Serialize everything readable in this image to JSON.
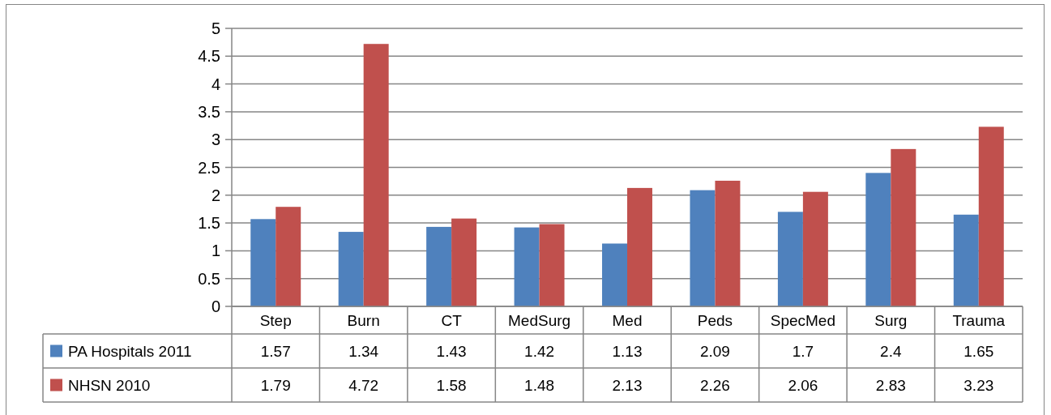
{
  "chart_data": {
    "type": "bar",
    "categories": [
      "Step",
      "Burn",
      "CT",
      "MedSurg",
      "Med",
      "Peds",
      "SpecMed",
      "Surg",
      "Trauma"
    ],
    "series": [
      {
        "name": "PA Hospitals 2011",
        "color": "#4f81bd",
        "values": [
          1.57,
          1.34,
          1.43,
          1.42,
          1.13,
          2.09,
          1.7,
          2.4,
          1.65
        ]
      },
      {
        "name": "NHSN 2010",
        "color": "#c0504d",
        "values": [
          1.79,
          4.72,
          1.58,
          1.48,
          2.13,
          2.26,
          2.06,
          2.83,
          3.23
        ]
      }
    ],
    "ylim": [
      0,
      5
    ],
    "yticks": [
      0,
      0.5,
      1,
      1.5,
      2,
      2.5,
      3,
      3.5,
      4,
      4.5,
      5
    ],
    "grid": "y",
    "legend": "bottom",
    "data_labels": true
  }
}
